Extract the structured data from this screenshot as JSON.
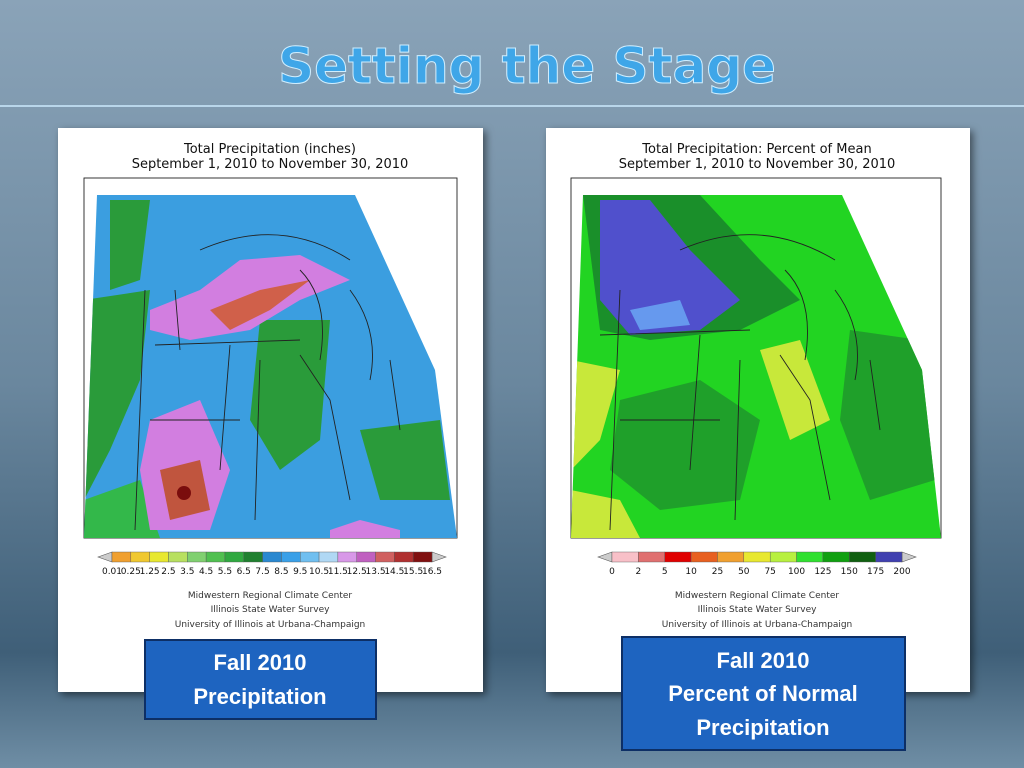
{
  "title": "Setting the Stage",
  "panels": [
    {
      "map_title": [
        "Total Precipitation (inches)",
        "September 1, 2010 to November 30, 2010"
      ],
      "legend_labels": [
        "0.01",
        "0.25",
        "1.25",
        "2.5",
        "3.5",
        "4.5",
        "5.5",
        "6.5",
        "7.5",
        "8.5",
        "9.5",
        "10.5",
        "11.5",
        "12.5",
        "13.5",
        "14.5",
        "15.5",
        "16.5"
      ],
      "credits": [
        "Midwestern Regional Climate Center",
        "Illinois State Water Survey",
        "University of Illinois at Urbana-Champaign"
      ],
      "caption": [
        "Fall 2010",
        "Precipitation"
      ]
    },
    {
      "map_title": [
        "Total Precipitation: Percent of Mean",
        "September 1, 2010 to November 30, 2010"
      ],
      "legend_labels": [
        "0",
        "2",
        "5",
        "10",
        "25",
        "50",
        "75",
        "100",
        "125",
        "150",
        "175",
        "200"
      ],
      "credits": [
        "Midwestern Regional Climate Center",
        "Illinois State Water Survey",
        "University of Illinois at Urbana-Champaign"
      ],
      "caption": [
        "Fall 2010",
        "Percent of Normal",
        "Precipitation"
      ]
    }
  ]
}
